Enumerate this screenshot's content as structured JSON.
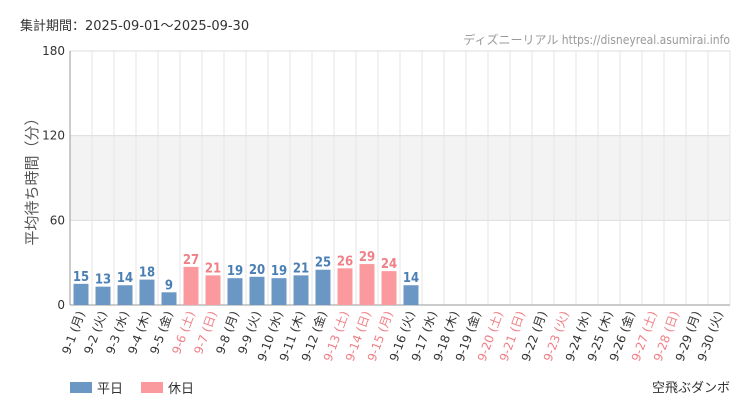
{
  "header": {
    "period_label": "集計期間：2025-09-01～2025-09-30"
  },
  "footer": {
    "attraction": "空飛ぶダンボ"
  },
  "colors": {
    "weekday": "#6a97c4",
    "holiday": "#fa999e",
    "weekday_text": "#4a7fb5",
    "holiday_text": "#f07f86",
    "band": "#f3f3f3",
    "grid": "#e6e6e6"
  },
  "chart_data": {
    "type": "bar",
    "title": "",
    "ylabel": "平均待ち時間（分）",
    "xlabel": "",
    "ylim": [
      0,
      180
    ],
    "yticks": [
      0,
      60,
      120,
      180
    ],
    "watermark": "ディズニーリアル https://disneyreal.asumirai.info",
    "legend": [
      {
        "label": "平日",
        "kind": "weekday"
      },
      {
        "label": "休日",
        "kind": "holiday"
      }
    ],
    "categories": [
      {
        "label": "9-1 (月)",
        "holiday": false,
        "value": 15
      },
      {
        "label": "9-2 (火)",
        "holiday": false,
        "value": 13
      },
      {
        "label": "9-3 (水)",
        "holiday": false,
        "value": 14
      },
      {
        "label": "9-4 (木)",
        "holiday": false,
        "value": 18
      },
      {
        "label": "9-5 (金)",
        "holiday": false,
        "value": 9
      },
      {
        "label": "9-6 (土)",
        "holiday": true,
        "value": 27
      },
      {
        "label": "9-7 (日)",
        "holiday": true,
        "value": 21
      },
      {
        "label": "9-8 (月)",
        "holiday": false,
        "value": 19
      },
      {
        "label": "9-9 (火)",
        "holiday": false,
        "value": 20
      },
      {
        "label": "9-10 (水)",
        "holiday": false,
        "value": 19
      },
      {
        "label": "9-11 (木)",
        "holiday": false,
        "value": 21
      },
      {
        "label": "9-12 (金)",
        "holiday": false,
        "value": 25
      },
      {
        "label": "9-13 (土)",
        "holiday": true,
        "value": 26
      },
      {
        "label": "9-14 (日)",
        "holiday": true,
        "value": 29
      },
      {
        "label": "9-15 (月)",
        "holiday": true,
        "value": 24
      },
      {
        "label": "9-16 (火)",
        "holiday": false,
        "value": 14
      },
      {
        "label": "9-17 (水)",
        "holiday": false,
        "value": null
      },
      {
        "label": "9-18 (木)",
        "holiday": false,
        "value": null
      },
      {
        "label": "9-19 (金)",
        "holiday": false,
        "value": null
      },
      {
        "label": "9-20 (土)",
        "holiday": true,
        "value": null
      },
      {
        "label": "9-21 (日)",
        "holiday": true,
        "value": null
      },
      {
        "label": "9-22 (月)",
        "holiday": false,
        "value": null
      },
      {
        "label": "9-23 (火)",
        "holiday": true,
        "value": null
      },
      {
        "label": "9-24 (水)",
        "holiday": false,
        "value": null
      },
      {
        "label": "9-25 (木)",
        "holiday": false,
        "value": null
      },
      {
        "label": "9-26 (金)",
        "holiday": false,
        "value": null
      },
      {
        "label": "9-27 (土)",
        "holiday": true,
        "value": null
      },
      {
        "label": "9-28 (日)",
        "holiday": true,
        "value": null
      },
      {
        "label": "9-29 (月)",
        "holiday": false,
        "value": null
      },
      {
        "label": "9-30 (火)",
        "holiday": false,
        "value": null
      }
    ]
  }
}
